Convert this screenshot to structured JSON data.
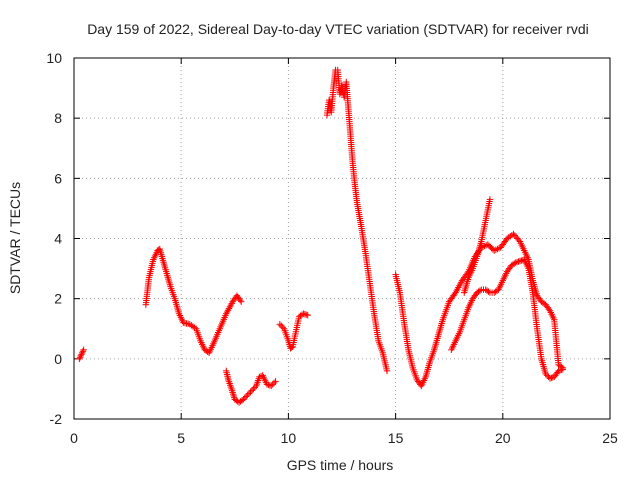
{
  "chart_data": {
    "type": "scatter",
    "title": "Day 159 of 2022, Sidereal Day-to-day VTEC variation (SDTVAR) for receiver rvdi",
    "xlabel": "GPS time / hours",
    "ylabel": "SDTVAR / TECUs",
    "xlim": [
      0,
      25
    ],
    "ylim": [
      -2,
      10
    ],
    "xticks": [
      0,
      5,
      10,
      15,
      20,
      25
    ],
    "yticks": [
      -2,
      0,
      2,
      4,
      6,
      8,
      10
    ],
    "grid": true,
    "marker": "+",
    "color": "#ff0000",
    "segments": [
      {
        "name": "s1",
        "x": [
          0.25,
          0.35,
          0.45
        ],
        "y": [
          0.0,
          0.15,
          0.3
        ]
      },
      {
        "name": "s2",
        "x": [
          3.35,
          3.5,
          3.7,
          3.9,
          4.0,
          4.1,
          4.3,
          4.5,
          4.7,
          4.9,
          5.1,
          5.4,
          5.7,
          5.9,
          6.1,
          6.3,
          6.5,
          6.8,
          7.1,
          7.4,
          7.6,
          7.8
        ],
        "y": [
          1.8,
          2.7,
          3.3,
          3.6,
          3.65,
          3.4,
          2.9,
          2.4,
          2.0,
          1.5,
          1.2,
          1.15,
          1.0,
          0.6,
          0.3,
          0.2,
          0.5,
          1.0,
          1.5,
          1.9,
          2.1,
          1.9
        ]
      },
      {
        "name": "s3",
        "x": [
          7.1,
          7.2,
          7.35,
          7.5,
          7.7,
          7.9,
          8.1,
          8.3,
          8.5,
          8.65,
          8.8,
          9.0,
          9.2,
          9.4
        ],
        "y": [
          -0.4,
          -0.7,
          -1.0,
          -1.35,
          -1.45,
          -1.35,
          -1.2,
          -1.05,
          -0.9,
          -0.6,
          -0.55,
          -0.85,
          -0.9,
          -0.75
        ]
      },
      {
        "name": "s4",
        "x": [
          9.6,
          9.8,
          10.0,
          10.1,
          10.2,
          10.35,
          10.5,
          10.7,
          10.9
        ],
        "y": [
          1.15,
          1.0,
          0.6,
          0.35,
          0.4,
          0.9,
          1.4,
          1.5,
          1.45
        ]
      },
      {
        "name": "s5",
        "x": [
          11.8,
          11.9,
          12.0,
          12.1,
          12.2,
          12.3,
          12.4,
          12.5,
          12.6,
          12.7,
          12.8,
          12.9,
          13.0,
          13.1,
          13.2,
          13.4,
          13.6,
          13.8,
          14.0,
          14.2,
          14.4,
          14.6
        ],
        "y": [
          8.1,
          8.6,
          8.2,
          9.0,
          9.6,
          9.6,
          8.8,
          9.1,
          8.7,
          9.2,
          8.3,
          7.4,
          6.5,
          5.8,
          5.2,
          4.4,
          3.5,
          2.5,
          1.5,
          0.6,
          0.2,
          -0.4
        ]
      },
      {
        "name": "s6",
        "x": [
          15.0,
          15.2,
          15.4,
          15.6,
          15.8,
          16.0,
          16.2,
          16.4,
          16.6,
          16.8,
          17.0,
          17.2,
          17.5,
          17.8,
          18.1,
          18.4,
          18.7,
          19.0,
          19.3,
          19.6,
          19.9,
          20.2,
          20.5,
          20.8,
          21.0,
          21.2,
          21.4,
          21.6,
          21.8,
          22.0,
          22.2,
          22.4,
          22.6,
          22.8
        ],
        "y": [
          2.8,
          2.2,
          1.2,
          0.3,
          -0.3,
          -0.7,
          -0.9,
          -0.6,
          -0.1,
          0.3,
          0.8,
          1.3,
          1.9,
          2.2,
          2.6,
          2.9,
          3.4,
          3.7,
          3.8,
          3.6,
          3.7,
          4.0,
          4.15,
          3.9,
          3.6,
          3.3,
          2.6,
          2.1,
          1.9,
          1.8,
          1.6,
          1.3,
          -0.2,
          -0.3
        ]
      },
      {
        "name": "s7",
        "x": [
          17.6,
          17.8,
          18.0,
          18.2,
          18.4,
          18.6,
          18.8,
          19.0,
          19.2,
          19.4,
          19.6,
          19.8,
          20.0,
          20.2,
          20.4,
          20.6,
          20.8,
          21.0,
          21.2,
          21.4,
          21.6,
          21.8,
          22.0,
          22.2,
          22.4,
          22.6,
          22.8
        ],
        "y": [
          0.3,
          0.6,
          0.9,
          1.3,
          1.7,
          2.0,
          2.2,
          2.3,
          2.3,
          2.2,
          2.2,
          2.3,
          2.6,
          2.9,
          3.1,
          3.2,
          3.25,
          3.3,
          3.0,
          2.2,
          1.0,
          0.0,
          -0.5,
          -0.65,
          -0.6,
          -0.4,
          -0.35
        ]
      },
      {
        "name": "s8",
        "x": [
          18.2,
          18.4,
          18.6,
          18.8,
          19.0,
          19.2,
          19.4
        ],
        "y": [
          2.2,
          2.7,
          3.0,
          3.4,
          3.9,
          4.6,
          5.3
        ]
      }
    ]
  }
}
